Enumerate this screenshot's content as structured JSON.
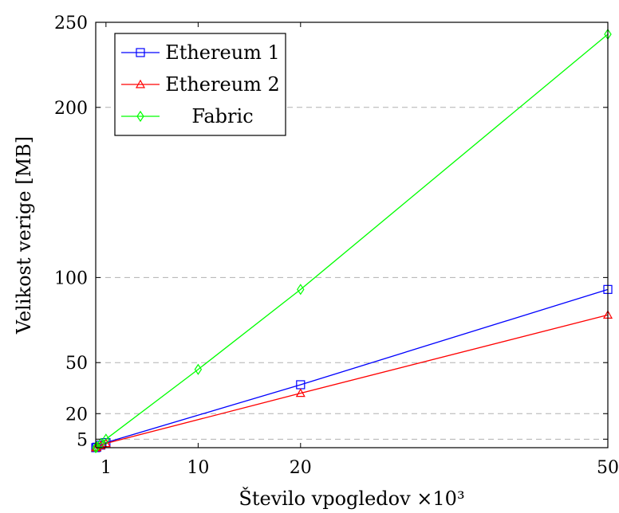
{
  "chart_data": {
    "type": "line",
    "xlabel": "Število vpogledov ×10³",
    "ylabel": "Velikost verige [MB]",
    "x_ticks": [
      1,
      10,
      20,
      50
    ],
    "y_ticks": [
      5,
      20,
      50,
      100,
      200,
      250
    ],
    "y_grid_values": [
      5,
      20,
      50,
      100,
      200
    ],
    "xlim": [
      0,
      50
    ],
    "ylim": [
      0,
      250
    ],
    "grid": "horizontal dashed",
    "legend_position": "top-left",
    "series": [
      {
        "name": "Ethereum 1",
        "color": "#0000ff",
        "marker": "square",
        "x": [
          0,
          0.1,
          0.5,
          1,
          20,
          50
        ],
        "y": [
          0,
          0.3,
          1.5,
          3,
          37,
          93
        ]
      },
      {
        "name": "Ethereum 2",
        "color": "#ff0000",
        "marker": "triangle",
        "x": [
          0,
          0.1,
          0.5,
          1,
          20,
          50
        ],
        "y": [
          0,
          0.3,
          1.3,
          2.5,
          32,
          78
        ]
      },
      {
        "name": "Fabric",
        "color": "#00ff00",
        "marker": "diamond",
        "x": [
          0,
          0.1,
          0.5,
          1,
          10,
          20,
          50
        ],
        "y": [
          0,
          0.5,
          2.5,
          5,
          46,
          93,
          243
        ]
      }
    ]
  }
}
